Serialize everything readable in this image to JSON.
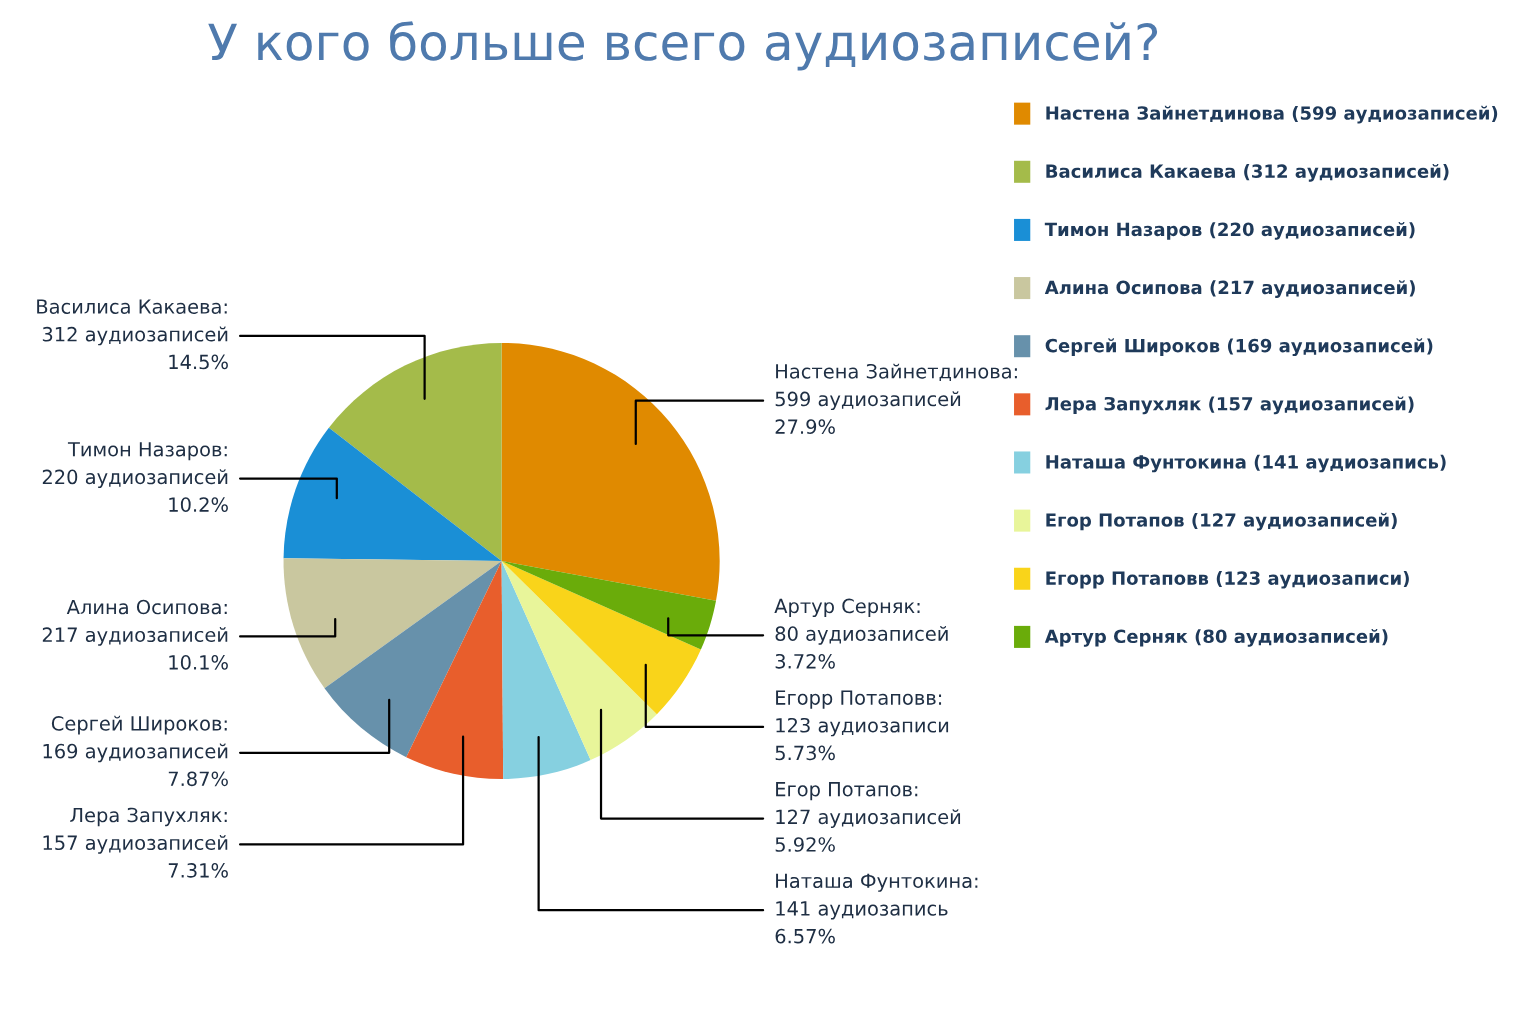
{
  "chart_data": {
    "type": "pie",
    "title": "У кого больше всего аудиозаписей?",
    "categories": [
      "Настена Зайнетдинова (599 аудиозаписей)",
      "Василиса Какаева (312 аудиозаписей)",
      "Тимон Назаров (220 аудиозаписей)",
      "Алина Осипова (217 аудиозаписей)",
      "Сергей Широков (169 аудиозаписей)",
      "Лера Запухляк (157 аудиозаписей)",
      "Наташа Фунтокина (141 аудиозапись)",
      "Егор Потапов (127 аудиозаписей)",
      "Егорр Потаповв (123 аудиозаписи)",
      "Артур Серняк (80 аудиозаписей)"
    ],
    "values": [
      599,
      312,
      220,
      217,
      169,
      157,
      141,
      127,
      123,
      80
    ],
    "value_labels": [
      "Настена Зайнетдинова:\n599 аудиозаписей\n27.9%",
      "Василиса Какаева:\n312 аудиозаписей\n14.5%",
      "Тимон Назаров:\n220 аудиозаписей\n10.2%",
      "Алина Осипова:\n217 аудиозаписей\n10.1%",
      "Сергей Широков:\n169 аудиозаписей\n7.87%",
      "Лера Запухляк:\n157 аудиозаписей\n7.31%",
      "Наташа Фунтокина:\n141 аудиозапись\n6.57%",
      "Егор Потапов:\n127 аудиозаписей\n5.92%",
      "Егорр Потаповв:\n123 аудиозаписи\n5.73%",
      "Артур Серняк:\n80 аудиозаписей\n3.72%"
    ],
    "colors": [
      "#e08a00",
      "#a4bb4a",
      "#1a8fd6",
      "#c9c79f",
      "#6791ab",
      "#e85e2c",
      "#86d0e0",
      "#e8f59a",
      "#f9d41a",
      "#6aac0a"
    ],
    "legend": "right"
  }
}
